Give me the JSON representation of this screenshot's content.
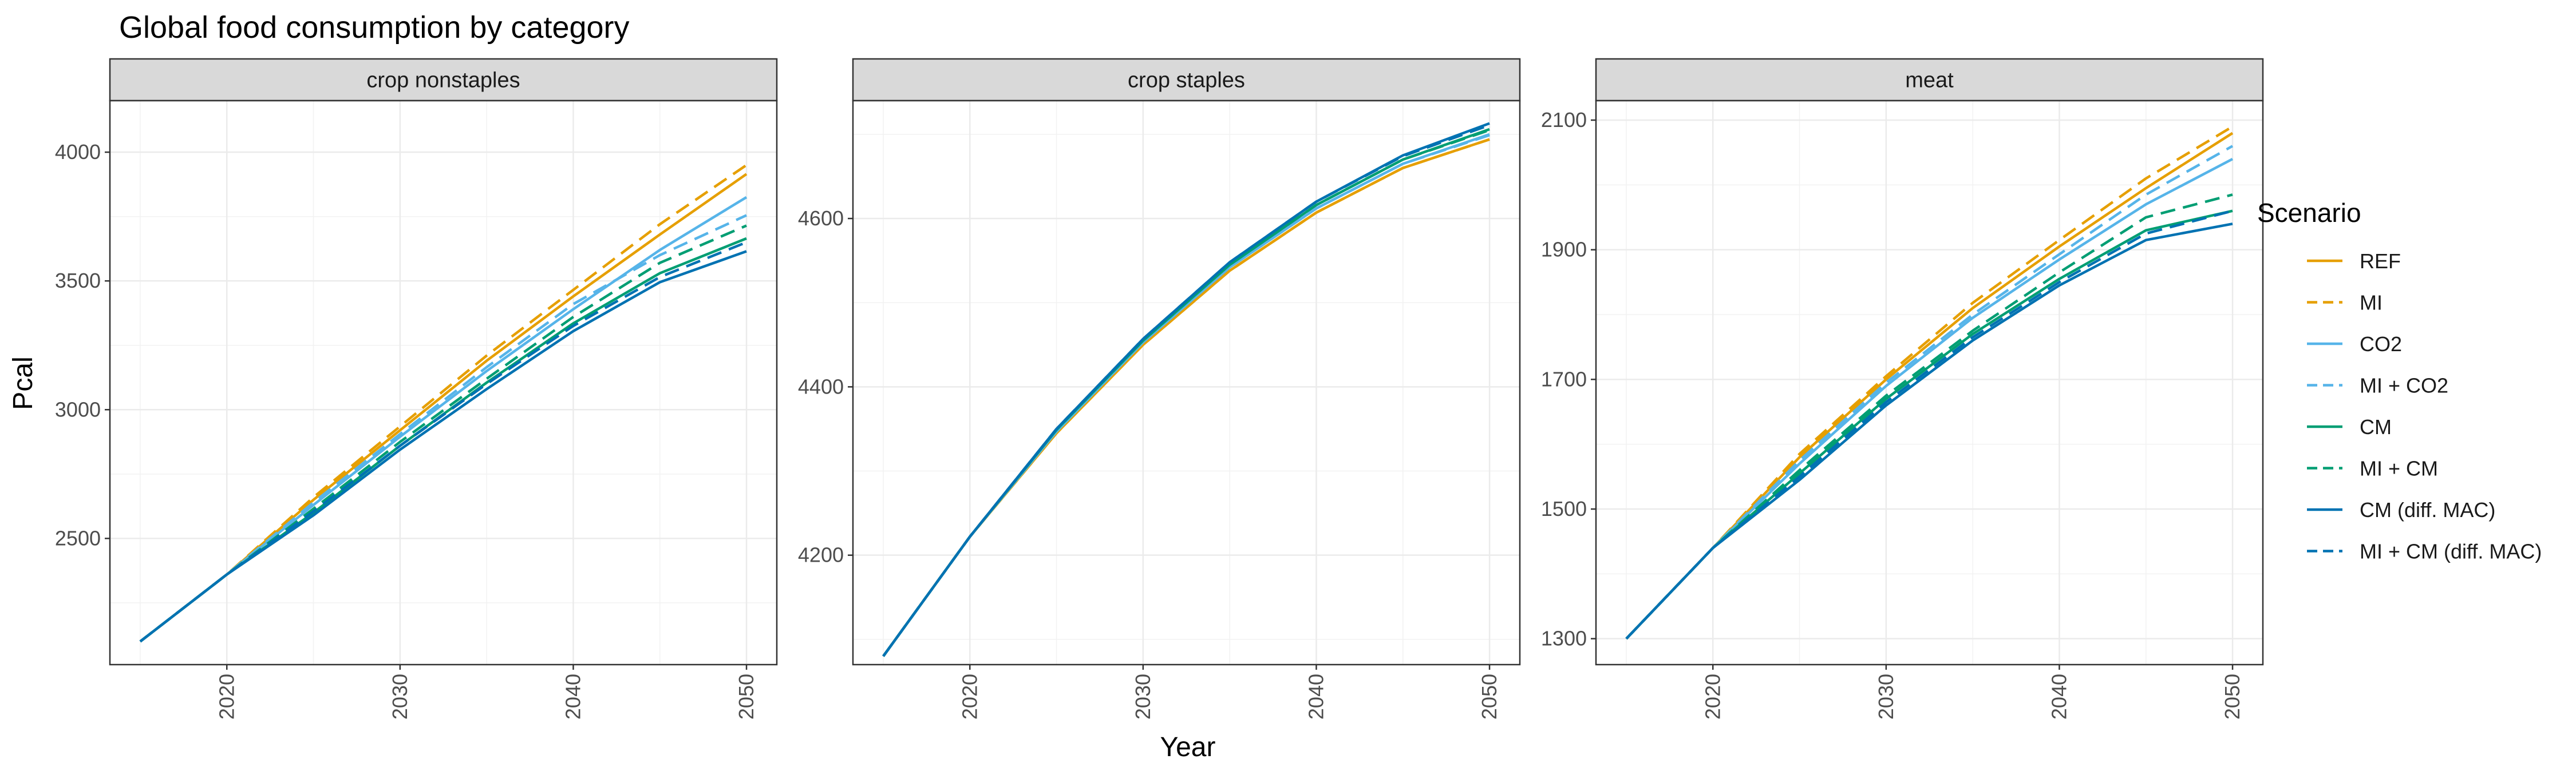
{
  "title": "Global food consumption by category",
  "xlabel": "Year",
  "ylabel": "Pcal",
  "legend": {
    "title": "Scenario",
    "position": "right"
  },
  "colors": {
    "REF": "#E69F00",
    "MI": "#E69F00",
    "CO2": "#56B4E9",
    "MI + CO2": "#56B4E9",
    "CM": "#009E73",
    "MI + CM": "#009E73",
    "CM (diff. MAC)": "#0072B2",
    "MI + CM (diff. MAC)": "#0072B2"
  },
  "chart_data": {
    "type": "line",
    "facet_by": "category",
    "grid": true,
    "x": [
      2015,
      2020,
      2025,
      2030,
      2035,
      2040,
      2045,
      2050
    ],
    "x_ticks": [
      "2020",
      "2030",
      "2040",
      "2050"
    ],
    "legend_entries": [
      {
        "name": "REF",
        "dashed": false
      },
      {
        "name": "MI",
        "dashed": true
      },
      {
        "name": "CO2",
        "dashed": false
      },
      {
        "name": "MI + CO2",
        "dashed": true
      },
      {
        "name": "CM",
        "dashed": false
      },
      {
        "name": "MI + CM",
        "dashed": true
      },
      {
        "name": "CM (diff. MAC)",
        "dashed": false
      },
      {
        "name": "MI + CM (diff. MAC)",
        "dashed": true
      }
    ],
    "facets": [
      {
        "label": "crop nonstaples",
        "ylim": [
          2010,
          4200
        ],
        "y_ticks": [
          "2500",
          "3000",
          "3500",
          "4000"
        ],
        "y_tick_values": [
          2500,
          3000,
          3500,
          4000
        ],
        "series": [
          {
            "name": "REF",
            "dashed": false,
            "values": [
              2100,
              2360,
              2650,
              2920,
              3190,
              3440,
              3680,
              3915
            ]
          },
          {
            "name": "MI",
            "dashed": true,
            "values": [
              2100,
              2360,
              2660,
              2935,
              3210,
              3465,
              3720,
              3950
            ]
          },
          {
            "name": "CO2",
            "dashed": false,
            "values": [
              2100,
              2360,
              2630,
              2895,
              3150,
              3390,
              3620,
              3825
            ]
          },
          {
            "name": "MI + CO2",
            "dashed": true,
            "values": [
              2100,
              2360,
              2640,
              2905,
              3165,
              3410,
              3600,
              3755
            ]
          },
          {
            "name": "CM",
            "dashed": false,
            "values": [
              2100,
              2360,
              2600,
              2860,
              3105,
              3335,
              3530,
              3665
            ]
          },
          {
            "name": "MI + CM",
            "dashed": true,
            "values": [
              2100,
              2360,
              2615,
              2875,
              3120,
              3360,
              3570,
              3715
            ]
          },
          {
            "name": "CM (diff. MAC)",
            "dashed": false,
            "values": [
              2100,
              2360,
              2590,
              2845,
              3080,
              3305,
              3495,
              3615
            ]
          },
          {
            "name": "MI + CM (diff. MAC)",
            "dashed": true,
            "values": [
              2100,
              2360,
              2605,
              2860,
              3100,
              3325,
              3515,
              3650
            ]
          }
        ]
      },
      {
        "label": "crop staples",
        "ylim": [
          4070,
          4740
        ],
        "y_ticks": [
          "4200",
          "4400",
          "4600"
        ],
        "y_tick_values": [
          4200,
          4400,
          4600
        ],
        "series": [
          {
            "name": "REF",
            "dashed": false,
            "values": [
              4080,
              4222,
              4345,
              4450,
              4538,
              4607,
              4660,
              4694
            ]
          },
          {
            "name": "MI",
            "dashed": true,
            "values": [
              4080,
              4222,
              4345,
              4450,
              4538,
              4607,
              4660,
              4694
            ]
          },
          {
            "name": "CO2",
            "dashed": false,
            "values": [
              4080,
              4222,
              4347,
              4453,
              4542,
              4612,
              4665,
              4700
            ]
          },
          {
            "name": "MI + CO2",
            "dashed": true,
            "values": [
              4080,
              4222,
              4347,
              4453,
              4542,
              4612,
              4665,
              4699
            ]
          },
          {
            "name": "CM",
            "dashed": false,
            "values": [
              4080,
              4222,
              4349,
              4455,
              4545,
              4616,
              4670,
              4706
            ]
          },
          {
            "name": "MI + CM",
            "dashed": true,
            "values": [
              4080,
              4222,
              4349,
              4455,
              4545,
              4616,
              4670,
              4705
            ]
          },
          {
            "name": "CM (diff. MAC)",
            "dashed": false,
            "values": [
              4080,
              4222,
              4350,
              4457,
              4548,
              4620,
              4675,
              4713
            ]
          },
          {
            "name": "MI + CM (diff. MAC)",
            "dashed": true,
            "values": [
              4080,
              4222,
              4350,
              4457,
              4548,
              4620,
              4674,
              4711
            ]
          }
        ]
      },
      {
        "label": "meat",
        "ylim": [
          1260,
          2130
        ],
        "y_ticks": [
          "1300",
          "1500",
          "1700",
          "1900",
          "2100"
        ],
        "y_tick_values": [
          1300,
          1500,
          1700,
          1900,
          2100
        ],
        "series": [
          {
            "name": "REF",
            "dashed": false,
            "values": [
              1300,
              1440,
              1580,
              1700,
              1810,
              1905,
              1995,
              2080
            ]
          },
          {
            "name": "MI",
            "dashed": true,
            "values": [
              1300,
              1440,
              1585,
              1705,
              1818,
              1915,
              2010,
              2090
            ]
          },
          {
            "name": "CO2",
            "dashed": false,
            "values": [
              1300,
              1440,
              1570,
              1690,
              1795,
              1885,
              1970,
              2040
            ]
          },
          {
            "name": "MI + CO2",
            "dashed": true,
            "values": [
              1300,
              1440,
              1575,
              1695,
              1800,
              1893,
              1985,
              2060
            ]
          },
          {
            "name": "CM",
            "dashed": false,
            "values": [
              1300,
              1440,
              1555,
              1670,
              1770,
              1855,
              1930,
              1960
            ]
          },
          {
            "name": "MI + CM",
            "dashed": true,
            "values": [
              1300,
              1440,
              1560,
              1675,
              1775,
              1865,
              1950,
              1985
            ]
          },
          {
            "name": "CM (diff. MAC)",
            "dashed": false,
            "values": [
              1300,
              1440,
              1545,
              1660,
              1760,
              1845,
              1915,
              1940
            ]
          },
          {
            "name": "MI + CM (diff. MAC)",
            "dashed": true,
            "values": [
              1300,
              1440,
              1550,
              1665,
              1765,
              1850,
              1925,
              1960
            ]
          }
        ]
      }
    ]
  }
}
